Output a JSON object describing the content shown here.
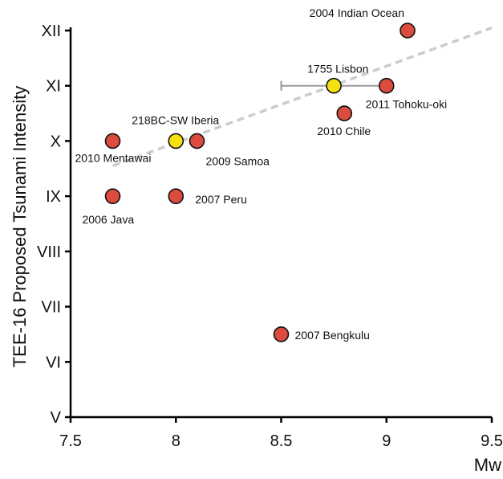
{
  "chart_data": {
    "type": "scatter",
    "title": "",
    "xlabel": "Mw",
    "ylabel": "TEE-16 Proposed Tsunami Intensity",
    "xlim": [
      7.5,
      9.5
    ],
    "ylim": [
      5,
      12
    ],
    "x_ticks": [
      "7.5",
      "8",
      "8.5",
      "9",
      "9.5"
    ],
    "y_ticks": [
      "V",
      "VI",
      "VII",
      "VIII",
      "IX",
      "X",
      "XI",
      "XII"
    ],
    "colors": {
      "historical": "#f5e010",
      "modern": "#dc4c3e",
      "trend": "#cccccc",
      "errorbar": "#999999"
    },
    "points": [
      {
        "label": "2004 Indian Ocean",
        "x": 9.1,
        "y": 12,
        "kind": "modern"
      },
      {
        "label": "1755 Lisbon",
        "x": 8.75,
        "y": 11,
        "kind": "historical",
        "xerr_min": 8.5,
        "xerr_max": 9.0
      },
      {
        "label": "2011 Tohoku-oki",
        "x": 9.0,
        "y": 11,
        "kind": "modern"
      },
      {
        "label": "2010 Chile",
        "x": 8.8,
        "y": 10.5,
        "kind": "modern"
      },
      {
        "label": "218BC-SW Iberia",
        "x": 8.0,
        "y": 10,
        "kind": "historical"
      },
      {
        "label": "2009 Samoa",
        "x": 8.1,
        "y": 10,
        "kind": "modern"
      },
      {
        "label": "2010 Mentawai",
        "x": 7.7,
        "y": 10,
        "kind": "modern"
      },
      {
        "label": "2006 Java",
        "x": 7.7,
        "y": 9,
        "kind": "modern"
      },
      {
        "label": "2007 Peru",
        "x": 8.0,
        "y": 9,
        "kind": "modern"
      },
      {
        "label": "2007 Bengkulu",
        "x": 8.5,
        "y": 6.5,
        "kind": "modern"
      }
    ],
    "trendline": {
      "style": "dashed",
      "x": [
        7.7,
        9.5
      ],
      "y": [
        9.55,
        12.05
      ]
    }
  }
}
